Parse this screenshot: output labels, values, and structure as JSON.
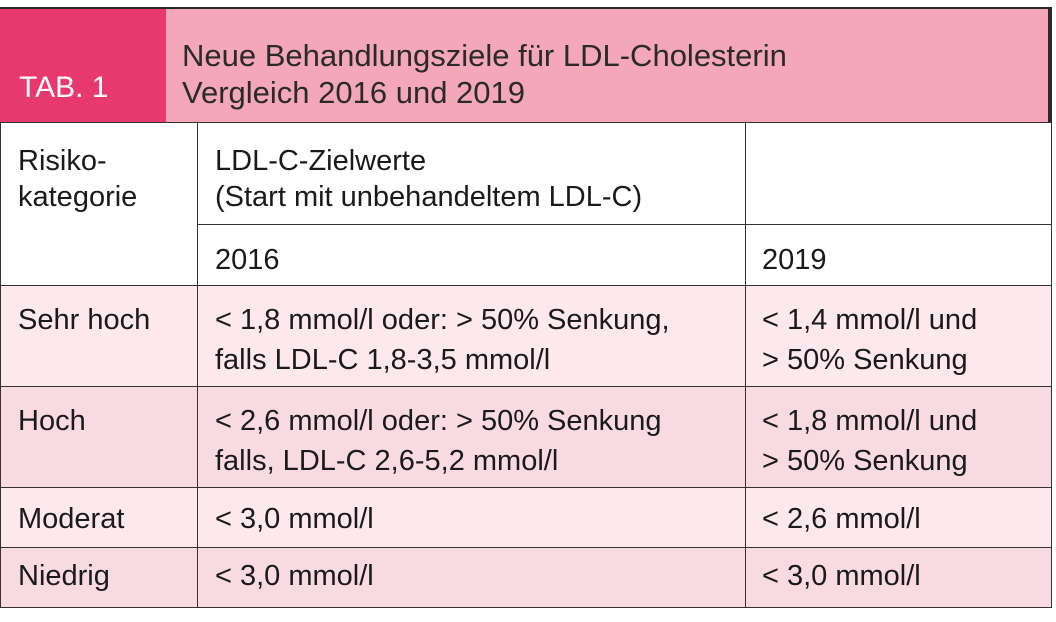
{
  "header": {
    "tab_label": "TAB. 1",
    "title_line1": "Neue Behandlungsziele für LDL-Cholesterin",
    "title_line2": "Vergleich 2016 und 2019"
  },
  "table": {
    "col1_header_line1": "Risiko-",
    "col1_header_line2": "kategorie",
    "group_header_line1": "LDL-C-Zielwerte",
    "group_header_line2": "(Start mit unbehandeltem LDL-C)",
    "year_2016": "2016",
    "year_2019": "2019",
    "rows": [
      {
        "category": "Sehr hoch",
        "v2016_line1": "< 1,8 mmol/l oder: > 50% Senkung,",
        "v2016_line2": "falls LDL-C 1,8-3,5 mmol/l",
        "v2019_line1": "< 1,4 mmol/l und",
        "v2019_line2": "> 50% Senkung"
      },
      {
        "category": "Hoch",
        "v2016_line1": "< 2,6 mmol/l oder: > 50% Senkung",
        "v2016_line2": "falls, LDL-C 2,6-5,2 mmol/l",
        "v2019_line1": "< 1,8 mmol/l und",
        "v2019_line2": "> 50% Senkung"
      },
      {
        "category": "Moderat",
        "v2016_line1": "< 3,0 mmol/l",
        "v2019_line1": "< 2,6 mmol/l"
      },
      {
        "category": "Niedrig",
        "v2016_line1": "< 3,0 mmol/l",
        "v2019_line1": "< 3,0 mmol/l"
      }
    ]
  },
  "colors": {
    "tab_background": "#e8396e",
    "title_background": "#f3a7b8",
    "row_light": "#fde8ed",
    "row_dark": "#f8dbe2"
  }
}
